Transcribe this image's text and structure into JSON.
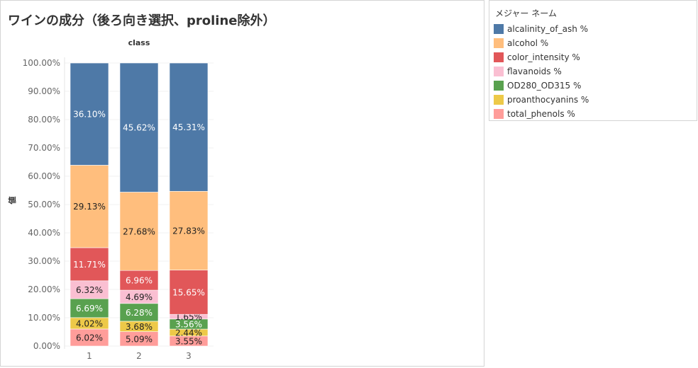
{
  "title": "ワインの成分（後ろ向き選択、proline除外）",
  "legend": {
    "title": "メジャー ネーム",
    "items": [
      {
        "label": "alcalinity_of_ash %",
        "color": "#4e79a7"
      },
      {
        "label": "alcohol %",
        "color": "#ffbe7d"
      },
      {
        "label": "color_intensity %",
        "color": "#e15759"
      },
      {
        "label": "flavanoids %",
        "color": "#fabfd2"
      },
      {
        "label": "OD280_OD315 %",
        "color": "#59a14f"
      },
      {
        "label": "proanthocyanins %",
        "color": "#edc948"
      },
      {
        "label": "total_phenols %",
        "color": "#ff9d9a"
      }
    ]
  },
  "chart_data": {
    "type": "bar",
    "stacked": true,
    "column_header": "class",
    "ylabel": "値",
    "categories": [
      "1",
      "2",
      "3"
    ],
    "yticks": [
      "0.00%",
      "10.00%",
      "20.00%",
      "30.00%",
      "40.00%",
      "50.00%",
      "60.00%",
      "70.00%",
      "80.00%",
      "90.00%",
      "100.00%"
    ],
    "ylim": [
      0,
      100
    ],
    "series": [
      {
        "name": "total_phenols %",
        "color": "#ff9d9a",
        "values": [
          6.02,
          5.09,
          3.55
        ],
        "labels": [
          "6.02%",
          "5.09%",
          "3.55%"
        ]
      },
      {
        "name": "proanthocyanins %",
        "color": "#edc948",
        "values": [
          4.02,
          3.68,
          2.44
        ],
        "labels": [
          "4.02%",
          "3.68%",
          "2.44%"
        ]
      },
      {
        "name": "OD280_OD315 %",
        "color": "#59a14f",
        "values": [
          6.69,
          6.28,
          3.56
        ],
        "labels": [
          "6.69%",
          "6.28%",
          "3.56%"
        ]
      },
      {
        "name": "flavanoids %",
        "color": "#fabfd2",
        "values": [
          6.32,
          4.69,
          1.65
        ],
        "labels": [
          "6.32%",
          "4.69%",
          "1.65%"
        ]
      },
      {
        "name": "color_intensity %",
        "color": "#e15759",
        "values": [
          11.71,
          6.96,
          15.65
        ],
        "labels": [
          "11.71%",
          "6.96%",
          "15.65%"
        ]
      },
      {
        "name": "alcohol %",
        "color": "#ffbe7d",
        "values": [
          29.13,
          27.68,
          27.83
        ],
        "labels": [
          "29.13%",
          "27.68%",
          "27.83%"
        ]
      },
      {
        "name": "alcalinity_of_ash %",
        "color": "#4e79a7",
        "values": [
          36.1,
          45.62,
          45.31
        ],
        "labels": [
          "36.10%",
          "45.62%",
          "45.31%"
        ]
      }
    ]
  }
}
